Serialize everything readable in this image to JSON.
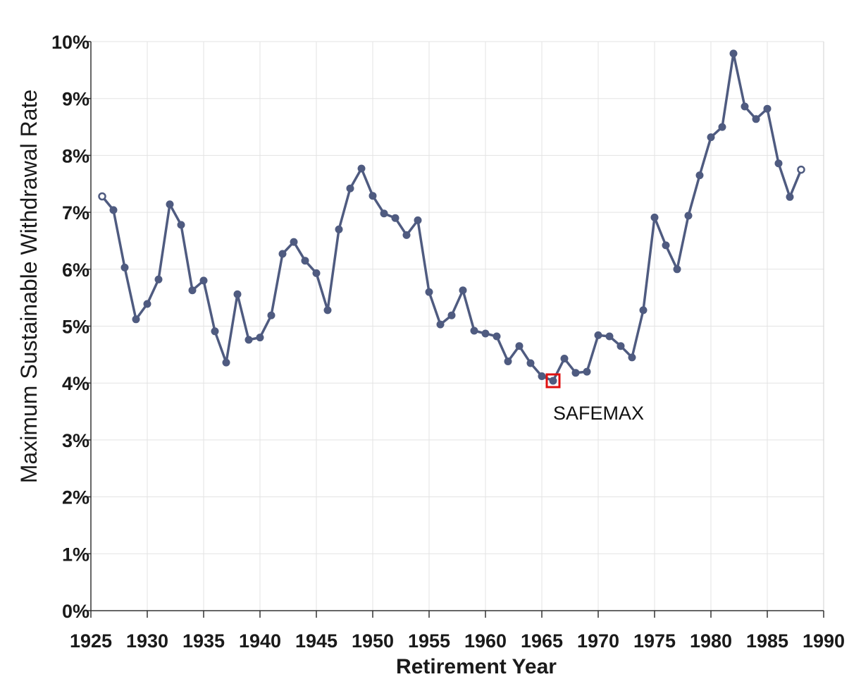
{
  "chart_data": {
    "type": "line",
    "xlabel": "Retirement Year",
    "ylabel": "Maximum Sustainable Withdrawal Rate",
    "xlim": [
      1925,
      1990
    ],
    "ylim": [
      0,
      10
    ],
    "x_ticks": [
      "1925",
      "1930",
      "1935",
      "1940",
      "1945",
      "1950",
      "1955",
      "1960",
      "1965",
      "1970",
      "1975",
      "1980",
      "1985",
      "1990"
    ],
    "y_ticks": [
      "0%",
      "1%",
      "2%",
      "3%",
      "4%",
      "5%",
      "6%",
      "7%",
      "8%",
      "9%",
      "10%"
    ],
    "grid": true,
    "series": [
      {
        "color": "#4f5b80",
        "x": [
          1926,
          1927,
          1928,
          1929,
          1930,
          1931,
          1932,
          1933,
          1934,
          1935,
          1936,
          1937,
          1938,
          1939,
          1940,
          1941,
          1942,
          1943,
          1944,
          1945,
          1946,
          1947,
          1948,
          1949,
          1950,
          1951,
          1952,
          1953,
          1954,
          1955,
          1956,
          1957,
          1958,
          1959,
          1960,
          1961,
          1962,
          1963,
          1964,
          1965,
          1966,
          1967,
          1968,
          1969,
          1970,
          1971,
          1972,
          1973,
          1974,
          1975,
          1976,
          1977,
          1978,
          1979,
          1980,
          1981,
          1982,
          1983,
          1984,
          1985,
          1986,
          1987,
          1988
        ],
        "values": [
          7.28,
          7.04,
          6.03,
          5.12,
          5.39,
          5.82,
          7.14,
          6.78,
          5.63,
          5.8,
          4.91,
          4.36,
          5.56,
          4.76,
          4.8,
          5.19,
          6.27,
          6.48,
          6.15,
          5.93,
          5.28,
          6.7,
          7.42,
          7.77,
          7.29,
          6.98,
          6.9,
          6.6,
          6.86,
          5.6,
          5.03,
          5.19,
          5.63,
          4.92,
          4.87,
          4.82,
          4.38,
          4.65,
          4.35,
          4.12,
          4.04,
          4.43,
          4.18,
          4.2,
          4.84,
          4.82,
          4.65,
          4.45,
          5.28,
          6.91,
          6.42,
          6.0,
          6.94,
          7.65,
          8.32,
          8.5,
          9.79,
          8.86,
          8.64,
          8.82,
          7.86,
          7.27,
          7.75
        ]
      }
    ],
    "annotations": [
      {
        "text": "SAFEMAX",
        "x": 1966,
        "y": 4.04,
        "marker_color": "#e01010"
      }
    ]
  }
}
